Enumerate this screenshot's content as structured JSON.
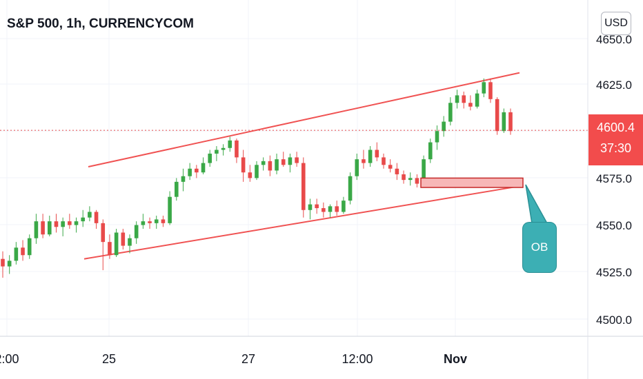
{
  "title": "S&P 500, 1h, CURRENCYCOM",
  "currency_button": "USD",
  "colors": {
    "up": "#26a69a",
    "up_green": "#3aa847",
    "down": "#e84a4a",
    "trendline": "#f05252",
    "ob_zone": "#f7b7b7",
    "ob_callout": "#3cafb4",
    "grid": "#f0f3fa",
    "axis_text": "#131722"
  },
  "current_price": {
    "value": "4600.4",
    "countdown": "37:30"
  },
  "annotation": {
    "label": "OB"
  },
  "chart_data": {
    "type": "candlestick",
    "y_ticks": [
      "4650.0",
      "4625.0",
      "4600.0",
      "4575.0",
      "4550.0",
      "4525.0",
      "4500.0"
    ],
    "x_ticks": [
      "2:00",
      "25",
      "27",
      "12:00",
      "Nov"
    ],
    "ylim": [
      4490,
      4660
    ],
    "grid": true,
    "candles_hourly": [
      [
        4532,
        4536,
        4522,
        4528
      ],
      [
        4528,
        4534,
        4524,
        4531
      ],
      [
        4531,
        4541,
        4529,
        4538
      ],
      [
        4538,
        4542,
        4531,
        4534
      ],
      [
        4534,
        4545,
        4532,
        4543
      ],
      [
        4543,
        4556,
        4540,
        4552
      ],
      [
        4552,
        4556,
        4543,
        4545
      ],
      [
        4545,
        4555,
        4544,
        4552
      ],
      [
        4552,
        4556,
        4546,
        4549
      ],
      [
        4549,
        4554,
        4544,
        4552
      ],
      [
        4552,
        4556,
        4548,
        4550
      ],
      [
        4550,
        4554,
        4546,
        4552
      ],
      [
        4552,
        4558,
        4549,
        4554
      ],
      [
        4554,
        4560,
        4552,
        4557
      ],
      [
        4557,
        4558,
        4548,
        4551
      ],
      [
        4551,
        4553,
        4526,
        4541
      ],
      [
        4541,
        4545,
        4532,
        4534
      ],
      [
        4534,
        4548,
        4533,
        4546
      ],
      [
        4546,
        4548,
        4537,
        4539
      ],
      [
        4539,
        4545,
        4535,
        4543
      ],
      [
        4543,
        4552,
        4540,
        4550
      ],
      [
        4550,
        4556,
        4548,
        4552
      ],
      [
        4552,
        4554,
        4548,
        4551
      ],
      [
        4551,
        4555,
        4548,
        4553
      ],
      [
        4553,
        4555,
        4549,
        4551
      ],
      [
        4551,
        4568,
        4550,
        4565
      ],
      [
        4565,
        4575,
        4563,
        4573
      ],
      [
        4573,
        4580,
        4568,
        4576
      ],
      [
        4576,
        4583,
        4574,
        4580
      ],
      [
        4580,
        4582,
        4575,
        4578
      ],
      [
        4578,
        4586,
        4577,
        4583
      ],
      [
        4583,
        4590,
        4581,
        4588
      ],
      [
        4588,
        4592,
        4584,
        4590
      ],
      [
        4590,
        4593,
        4587,
        4591
      ],
      [
        4591,
        4597,
        4589,
        4595
      ],
      [
        4595,
        4596,
        4583,
        4586
      ],
      [
        4586,
        4590,
        4573,
        4578
      ],
      [
        4578,
        4582,
        4573,
        4575
      ],
      [
        4575,
        4584,
        4574,
        4582
      ],
      [
        4582,
        4586,
        4579,
        4584
      ],
      [
        4584,
        4587,
        4576,
        4579
      ],
      [
        4579,
        4588,
        4577,
        4585
      ],
      [
        4585,
        4589,
        4581,
        4582
      ],
      [
        4582,
        4588,
        4578,
        4586
      ],
      [
        4586,
        4589,
        4581,
        4583
      ],
      [
        4583,
        4586,
        4554,
        4558
      ],
      [
        4558,
        4564,
        4553,
        4561
      ],
      [
        4561,
        4564,
        4556,
        4559
      ],
      [
        4559,
        4562,
        4554,
        4557
      ],
      [
        4557,
        4561,
        4554,
        4560
      ],
      [
        4560,
        4563,
        4555,
        4557
      ],
      [
        4557,
        4565,
        4556,
        4563
      ],
      [
        4563,
        4578,
        4561,
        4576
      ],
      [
        4576,
        4588,
        4574,
        4585
      ],
      [
        4585,
        4590,
        4580,
        4583
      ],
      [
        4583,
        4592,
        4581,
        4590
      ],
      [
        4590,
        4594,
        4584,
        4586
      ],
      [
        4586,
        4588,
        4580,
        4582
      ],
      [
        4582,
        4585,
        4578,
        4580
      ],
      [
        4580,
        4583,
        4574,
        4577
      ],
      [
        4577,
        4579,
        4572,
        4574
      ],
      [
        4574,
        4578,
        4571,
        4575
      ],
      [
        4575,
        4577,
        4570,
        4572
      ],
      [
        4572,
        4587,
        4571,
        4585
      ],
      [
        4585,
        4596,
        4583,
        4594
      ],
      [
        4594,
        4603,
        4590,
        4600
      ],
      [
        4600,
        4608,
        4597,
        4605
      ],
      [
        4605,
        4618,
        4603,
        4615
      ],
      [
        4615,
        4622,
        4612,
        4619
      ],
      [
        4619,
        4621,
        4612,
        4615
      ],
      [
        4615,
        4619,
        4611,
        4613
      ],
      [
        4613,
        4622,
        4612,
        4620
      ],
      [
        4620,
        4628,
        4618,
        4626
      ],
      [
        4626,
        4628,
        4615,
        4617
      ],
      [
        4617,
        4618,
        4598,
        4600
      ],
      [
        4600,
        4612,
        4599,
        4610
      ],
      [
        4610,
        4612,
        4598,
        4600
      ]
    ],
    "lines": [
      {
        "name": "upper channel",
        "from": [
          4581,
          0
        ],
        "to": [
          4631,
          1
        ]
      },
      {
        "name": "lower channel",
        "from": [
          4532,
          0
        ],
        "to": [
          4571,
          1
        ]
      }
    ],
    "zone": {
      "label": "OB",
      "price_top": 4575,
      "price_bottom": 4570
    }
  }
}
